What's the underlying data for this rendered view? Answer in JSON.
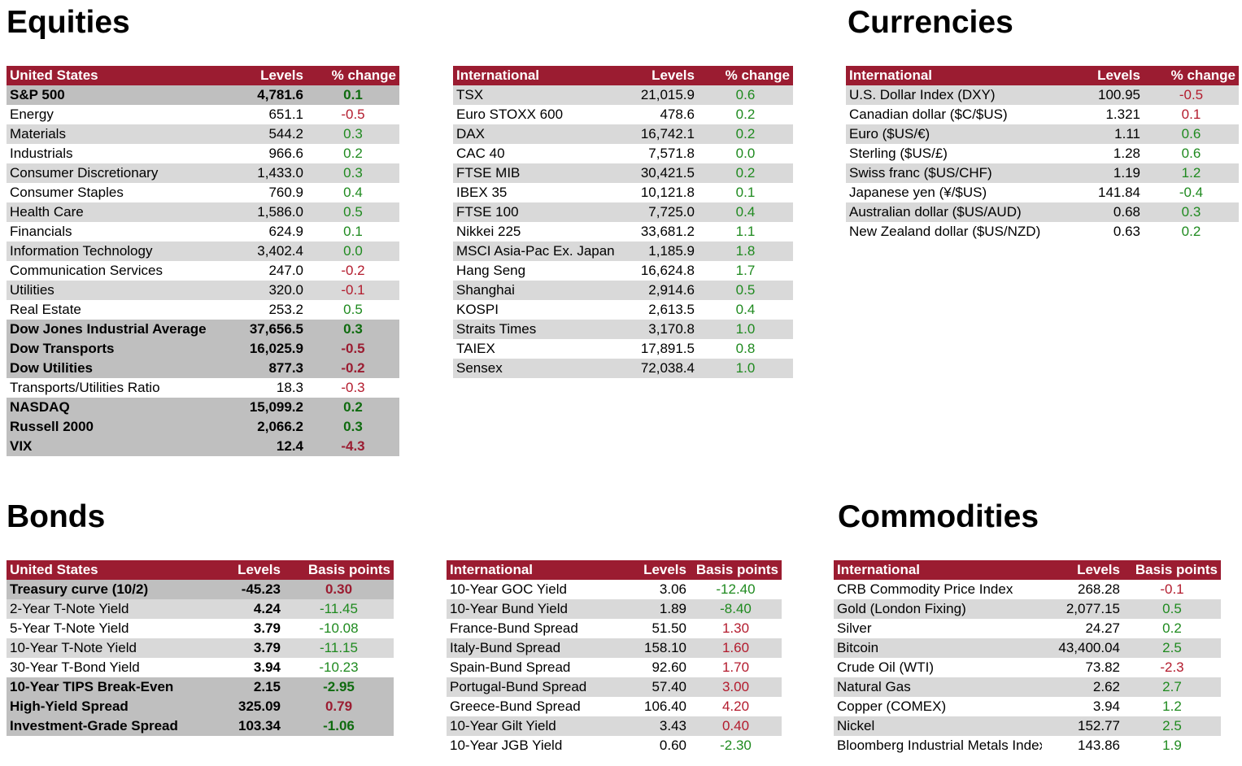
{
  "headings": {
    "equities": "Equities",
    "currencies": "Currencies",
    "bonds": "Bonds",
    "commodities": "Commodities"
  },
  "colors": {
    "header_bg": "#9b1c31",
    "positive": "#1f8a1f",
    "negative": "#b31b2d",
    "row_alt": "#d9d9d9",
    "row_highlight": "#bfbfbf"
  },
  "equities_us": {
    "headers": [
      "United States",
      "Levels",
      "% change"
    ],
    "rows": [
      {
        "name": "S&P 500",
        "level": "4,781.6",
        "change": "0.1",
        "dir": "pos",
        "style": "hl"
      },
      {
        "name": "Energy",
        "level": "651.1",
        "change": "-0.5",
        "dir": "neg",
        "style": ""
      },
      {
        "name": "Materials",
        "level": "544.2",
        "change": "0.3",
        "dir": "pos",
        "style": "alt"
      },
      {
        "name": "Industrials",
        "level": "966.6",
        "change": "0.2",
        "dir": "pos",
        "style": ""
      },
      {
        "name": "Consumer Discretionary",
        "level": "1,433.0",
        "change": "0.3",
        "dir": "pos",
        "style": "alt"
      },
      {
        "name": "Consumer Staples",
        "level": "760.9",
        "change": "0.4",
        "dir": "pos",
        "style": ""
      },
      {
        "name": "Health Care",
        "level": "1,586.0",
        "change": "0.5",
        "dir": "pos",
        "style": "alt"
      },
      {
        "name": "Financials",
        "level": "624.9",
        "change": "0.1",
        "dir": "pos",
        "style": ""
      },
      {
        "name": "Information Technology",
        "level": "3,402.4",
        "change": "0.0",
        "dir": "pos",
        "style": "alt"
      },
      {
        "name": "Communication Services",
        "level": "247.0",
        "change": "-0.2",
        "dir": "neg",
        "style": ""
      },
      {
        "name": "Utilities",
        "level": "320.0",
        "change": "-0.1",
        "dir": "neg",
        "style": "alt"
      },
      {
        "name": "Real Estate",
        "level": "253.2",
        "change": "0.5",
        "dir": "pos",
        "style": ""
      },
      {
        "name": "Dow Jones Industrial Average",
        "level": "37,656.5",
        "change": "0.3",
        "dir": "pos",
        "style": "hl"
      },
      {
        "name": "Dow Transports",
        "level": "16,025.9",
        "change": "-0.5",
        "dir": "neg",
        "style": "hl"
      },
      {
        "name": "Dow Utilities",
        "level": "877.3",
        "change": "-0.2",
        "dir": "neg",
        "style": "hl"
      },
      {
        "name": "Transports/Utilities Ratio",
        "level": "18.3",
        "change": "-0.3",
        "dir": "neg",
        "style": ""
      },
      {
        "name": "NASDAQ",
        "level": "15,099.2",
        "change": "0.2",
        "dir": "pos",
        "style": "hl"
      },
      {
        "name": "Russell 2000",
        "level": "2,066.2",
        "change": "0.3",
        "dir": "pos",
        "style": "hl"
      },
      {
        "name": "VIX",
        "level": "12.4",
        "change": "-4.3",
        "dir": "neg",
        "style": "hl"
      }
    ]
  },
  "equities_intl": {
    "headers": [
      "International",
      "Levels",
      "% change"
    ],
    "rows": [
      {
        "name": "TSX",
        "level": "21,015.9",
        "change": "0.6",
        "dir": "pos",
        "style": "alt"
      },
      {
        "name": "Euro STOXX 600",
        "level": "478.6",
        "change": "0.2",
        "dir": "pos",
        "style": ""
      },
      {
        "name": "DAX",
        "level": "16,742.1",
        "change": "0.2",
        "dir": "pos",
        "style": "alt"
      },
      {
        "name": "CAC 40",
        "level": "7,571.8",
        "change": "0.0",
        "dir": "pos",
        "style": ""
      },
      {
        "name": "FTSE MIB",
        "level": "30,421.5",
        "change": "0.2",
        "dir": "pos",
        "style": "alt"
      },
      {
        "name": "IBEX 35",
        "level": "10,121.8",
        "change": "0.1",
        "dir": "pos",
        "style": ""
      },
      {
        "name": "FTSE 100",
        "level": "7,725.0",
        "change": "0.4",
        "dir": "pos",
        "style": "alt"
      },
      {
        "name": "Nikkei 225",
        "level": "33,681.2",
        "change": "1.1",
        "dir": "pos",
        "style": ""
      },
      {
        "name": "MSCI Asia-Pac Ex. Japan",
        "level": "1,185.9",
        "change": "1.8",
        "dir": "pos",
        "style": "alt"
      },
      {
        "name": "Hang Seng",
        "level": "16,624.8",
        "change": "1.7",
        "dir": "pos",
        "style": ""
      },
      {
        "name": "Shanghai",
        "level": "2,914.6",
        "change": "0.5",
        "dir": "pos",
        "style": "alt"
      },
      {
        "name": "KOSPI",
        "level": "2,613.5",
        "change": "0.4",
        "dir": "pos",
        "style": ""
      },
      {
        "name": "Straits Times",
        "level": "3,170.8",
        "change": "1.0",
        "dir": "pos",
        "style": "alt"
      },
      {
        "name": "TAIEX",
        "level": "17,891.5",
        "change": "0.8",
        "dir": "pos",
        "style": ""
      },
      {
        "name": "Sensex",
        "level": "72,038.4",
        "change": "1.0",
        "dir": "pos",
        "style": "alt"
      }
    ]
  },
  "currencies": {
    "headers": [
      "International",
      "Levels",
      "% change"
    ],
    "rows": [
      {
        "name": "U.S. Dollar Index (DXY)",
        "level": "100.95",
        "change": "-0.5",
        "dir": "neg",
        "style": "alt"
      },
      {
        "name": "Canadian dollar ($C/$US)",
        "level": "1.321",
        "change": "0.1",
        "dir": "neg",
        "style": ""
      },
      {
        "name": "Euro ($US/€)",
        "level": "1.11",
        "change": "0.6",
        "dir": "pos",
        "style": "alt"
      },
      {
        "name": "Sterling ($US/£)",
        "level": "1.28",
        "change": "0.6",
        "dir": "pos",
        "style": ""
      },
      {
        "name": "Swiss franc ($US/CHF)",
        "level": "1.19",
        "change": "1.2",
        "dir": "pos",
        "style": "alt"
      },
      {
        "name": "Japanese yen (¥/$US)",
        "level": "141.84",
        "change": "-0.4",
        "dir": "pos",
        "style": ""
      },
      {
        "name": "Australian dollar ($US/AUD)",
        "level": "0.68",
        "change": "0.3",
        "dir": "pos",
        "style": "alt"
      },
      {
        "name": "New Zealand dollar ($US/NZD)",
        "level": "0.63",
        "change": "0.2",
        "dir": "pos",
        "style": ""
      }
    ]
  },
  "bonds_us": {
    "headers": [
      "United States",
      "Levels",
      "Basis points"
    ],
    "rows": [
      {
        "name": "Treasury curve (10/2)",
        "level": "-45.23",
        "change": "0.30",
        "dir": "neg",
        "style": "hl"
      },
      {
        "name": "2-Year T-Note Yield",
        "level": "4.24",
        "change": "-11.45",
        "dir": "pos",
        "style": "alt",
        "bold_level": true
      },
      {
        "name": "5-Year T-Note Yield",
        "level": "3.79",
        "change": "-10.08",
        "dir": "pos",
        "style": "",
        "bold_level": true
      },
      {
        "name": "10-Year T-Note Yield",
        "level": "3.79",
        "change": "-11.15",
        "dir": "pos",
        "style": "alt",
        "bold_level": true
      },
      {
        "name": "30-Year T-Bond Yield",
        "level": "3.94",
        "change": "-10.23",
        "dir": "pos",
        "style": "",
        "bold_level": true
      },
      {
        "name": "10-Year TIPS Break-Even",
        "level": "2.15",
        "change": "-2.95",
        "dir": "pos",
        "style": "hl"
      },
      {
        "name": "High-Yield Spread",
        "level": "325.09",
        "change": "0.79",
        "dir": "neg",
        "style": "hl"
      },
      {
        "name": "Investment-Grade Spread",
        "level": "103.34",
        "change": "-1.06",
        "dir": "pos",
        "style": "hl"
      }
    ]
  },
  "bonds_intl": {
    "headers": [
      "International",
      "Levels",
      "Basis points"
    ],
    "rows": [
      {
        "name": "10-Year GOC Yield",
        "level": "3.06",
        "change": "-12.40",
        "dir": "pos",
        "style": ""
      },
      {
        "name": "10-Year Bund Yield",
        "level": "1.89",
        "change": "-8.40",
        "dir": "pos",
        "style": "alt"
      },
      {
        "name": "France-Bund Spread",
        "level": "51.50",
        "change": "1.30",
        "dir": "neg",
        "style": ""
      },
      {
        "name": "Italy-Bund Spread",
        "level": "158.10",
        "change": "1.60",
        "dir": "neg",
        "style": "alt"
      },
      {
        "name": "Spain-Bund Spread",
        "level": "92.60",
        "change": "1.70",
        "dir": "neg",
        "style": ""
      },
      {
        "name": "Portugal-Bund Spread",
        "level": "57.40",
        "change": "3.00",
        "dir": "neg",
        "style": "alt"
      },
      {
        "name": "Greece-Bund Spread",
        "level": "106.40",
        "change": "4.20",
        "dir": "neg",
        "style": ""
      },
      {
        "name": "10-Year Gilt Yield",
        "level": "3.43",
        "change": "0.40",
        "dir": "neg",
        "style": "alt"
      },
      {
        "name": "10-Year JGB Yield",
        "level": "0.60",
        "change": "-2.30",
        "dir": "pos",
        "style": ""
      }
    ]
  },
  "commodities": {
    "headers": [
      "International",
      "Levels",
      "Basis points"
    ],
    "rows": [
      {
        "name": "CRB Commodity Price Index",
        "level": "268.28",
        "change": "-0.1",
        "dir": "neg",
        "style": ""
      },
      {
        "name": "Gold (London Fixing)",
        "level": "2,077.15",
        "change": "0.5",
        "dir": "pos",
        "style": "alt"
      },
      {
        "name": "Silver",
        "level": "24.27",
        "change": "0.2",
        "dir": "pos",
        "style": ""
      },
      {
        "name": "Bitcoin",
        "level": "43,400.04",
        "change": "2.5",
        "dir": "pos",
        "style": "alt"
      },
      {
        "name": "Crude Oil (WTI)",
        "level": "73.82",
        "change": "-2.3",
        "dir": "neg",
        "style": ""
      },
      {
        "name": "Natural Gas",
        "level": "2.62",
        "change": "2.7",
        "dir": "pos",
        "style": "alt"
      },
      {
        "name": "Copper (COMEX)",
        "level": "3.94",
        "change": "1.2",
        "dir": "pos",
        "style": ""
      },
      {
        "name": "Nickel",
        "level": "152.77",
        "change": "2.5",
        "dir": "pos",
        "style": "alt"
      },
      {
        "name": "Bloomberg Industrial Metals Index",
        "level": "143.86",
        "change": "1.9",
        "dir": "pos",
        "style": ""
      }
    ]
  }
}
